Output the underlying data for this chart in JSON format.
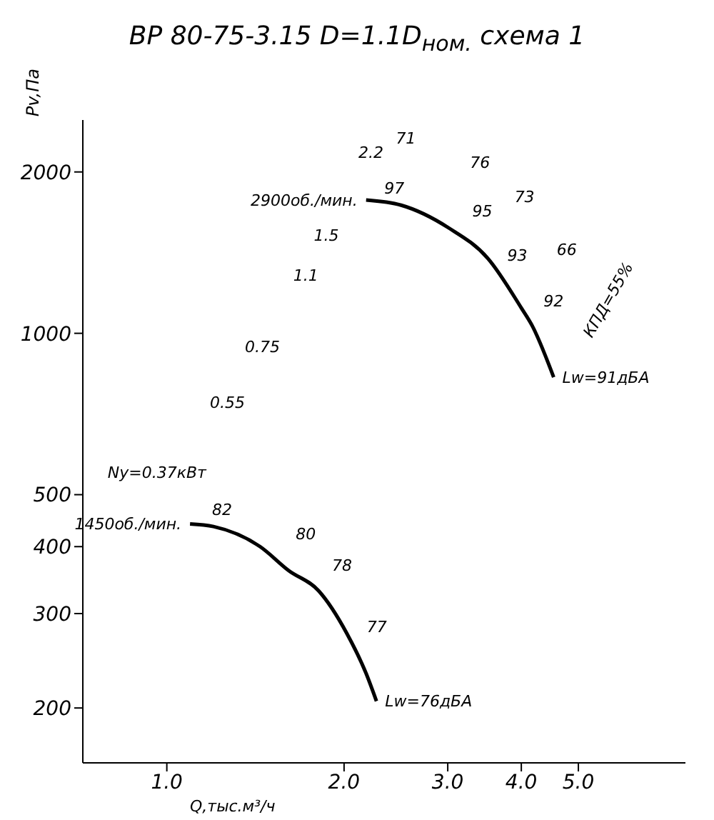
{
  "chart_data": {
    "type": "line",
    "title": "ВР 80-75-3.15 D=1.1D$_{ном.}$ схема 1",
    "xlabel": "Q,тыс.м³/ч",
    "ylabel": "Pv,Па",
    "log": "xy",
    "xlim": [
      0.72,
      7.6
    ],
    "ylim": [
      158,
      2500
    ],
    "xticks": [
      {
        "value": 1,
        "label": "1.0"
      },
      {
        "value": 2,
        "label": "2.0"
      },
      {
        "value": 3,
        "label": "3.0"
      },
      {
        "value": 4,
        "label": "4.0"
      },
      {
        "value": 5,
        "label": "5.0"
      }
    ],
    "yticks": [
      200,
      300,
      400,
      500,
      1000,
      2000
    ],
    "grid": false,
    "legend": false,
    "marker": "none",
    "line_style": "solid",
    "series": [
      {
        "color": "#000000",
        "x": [
          2.18,
          2.5,
          3.01,
          3.51,
          4.0,
          4.17,
          4.54
        ],
        "values": [
          1773,
          1734,
          1573,
          1379,
          1115,
          1035,
          828
        ]
      },
      {
        "color": "#000000",
        "x": [
          1.095,
          1.2,
          1.44,
          1.61,
          1.81,
          2.02,
          2.18,
          2.27
        ],
        "values": [
          441,
          436,
          400,
          361,
          331,
          276,
          232,
          206
        ]
      }
    ],
    "annotations": [
      {
        "text": "2900об./мин.",
        "x": 2.18,
        "y": 1773
      },
      {
        "text": "1450об./мин.",
        "x": 1.095,
        "y": 441
      },
      {
        "text": "Lw=91дБА",
        "x": 4.54,
        "y": 828
      },
      {
        "text": "Lw=76дБА",
        "x": 2.27,
        "y": 206
      },
      "2.2",
      "1.5",
      "1.1",
      "0.75",
      "0.55",
      "Ny=0.37кВт",
      "97",
      "95",
      "93",
      "92",
      "82",
      "80",
      "78",
      "77",
      "71",
      "76",
      "73",
      "66",
      "КПД=55%"
    ]
  }
}
